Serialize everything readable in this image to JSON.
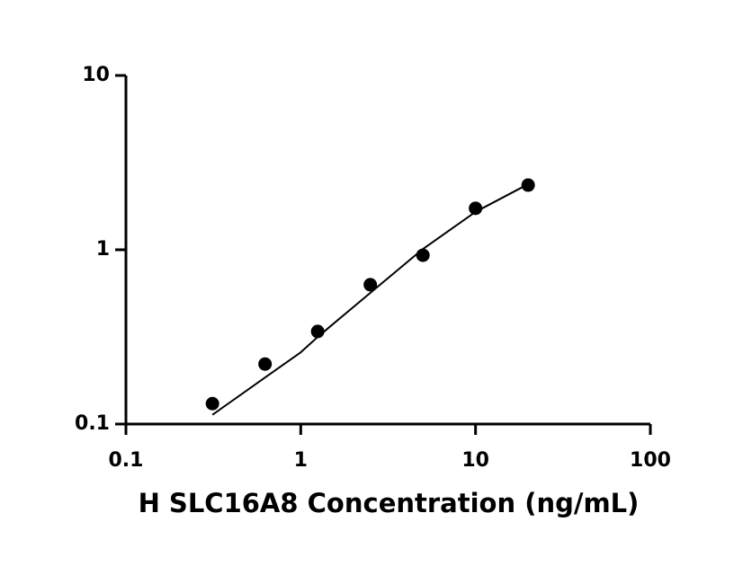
{
  "chart_data": {
    "type": "scatter",
    "x_label": "H SLC16A8 Concentration (ng/mL)",
    "xscale": "log",
    "yscale": "log",
    "xlim": [
      0.1,
      100
    ],
    "ylim": [
      0.1,
      10
    ],
    "xticks": [
      0.1,
      1,
      10,
      100
    ],
    "yticks": [
      0.1,
      1,
      10
    ],
    "series": [
      {
        "kind": "points",
        "color": "#000000",
        "x": [
          0.3125,
          0.625,
          1.25,
          2.5,
          5,
          10,
          20
        ],
        "values": [
          0.131,
          0.221,
          0.34,
          0.63,
          0.93,
          1.73,
          2.35
        ]
      },
      {
        "kind": "fit",
        "color": "#000000",
        "x": [
          0.3125,
          0.625,
          1,
          1.25,
          2.5,
          5,
          10,
          20
        ],
        "values": [
          0.113,
          0.185,
          0.258,
          0.316,
          0.566,
          1.01,
          1.65,
          2.38
        ]
      }
    ]
  }
}
